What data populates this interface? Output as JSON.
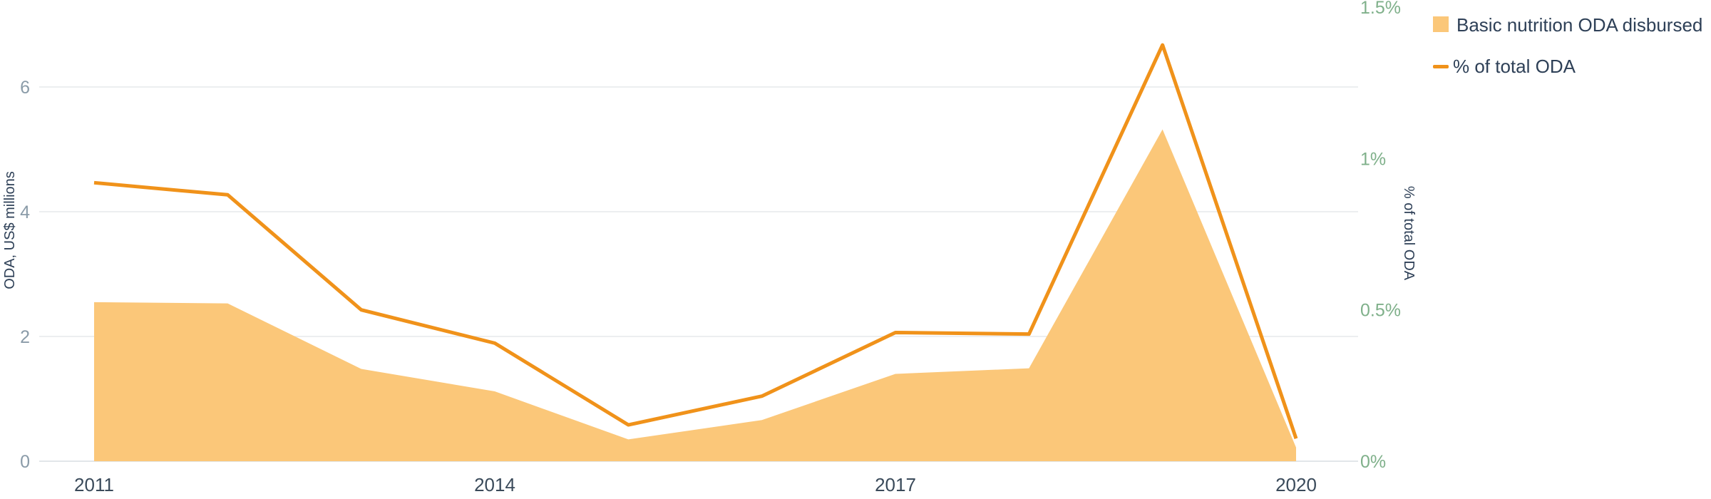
{
  "colors": {
    "area": "#fbc779",
    "line": "#f0921a",
    "grid": "#e6e9ec",
    "left_ticks": "#8a9ba8",
    "right_ticks": "#7fb08a"
  },
  "chart_data": {
    "type": "area",
    "x": [
      2011,
      2012,
      2013,
      2014,
      2015,
      2016,
      2017,
      2018,
      2019,
      2020
    ],
    "x_tick_labels": [
      "2011",
      "2014",
      "2017",
      "2020"
    ],
    "series": [
      {
        "name": "Basic nutrition ODA disbursed",
        "type": "area",
        "axis": "left",
        "values": [
          2.55,
          2.53,
          1.48,
          1.12,
          0.35,
          0.66,
          1.4,
          1.49,
          5.32,
          0.22
        ]
      },
      {
        "name": "% of total ODA",
        "type": "line",
        "axis": "right",
        "values": [
          0.92,
          0.88,
          0.5,
          0.39,
          0.12,
          0.215,
          0.425,
          0.42,
          1.375,
          0.075
        ]
      }
    ],
    "ylabel": "ODA, US$ millions",
    "ylim": [
      0,
      7.25
    ],
    "y_ticks": [
      0,
      2,
      4,
      6
    ],
    "y_tick_labels": [
      "0",
      "2",
      "4",
      "6"
    ],
    "y2label": "% of total ODA",
    "y2lim": [
      0,
      1.5
    ],
    "y2_ticks": [
      0,
      0.5,
      1,
      1.5
    ],
    "y2_tick_labels": [
      "0%",
      "0.5%",
      "1%",
      "1.5%"
    ],
    "grid": true,
    "legend_position": "top-right",
    "title": ""
  }
}
